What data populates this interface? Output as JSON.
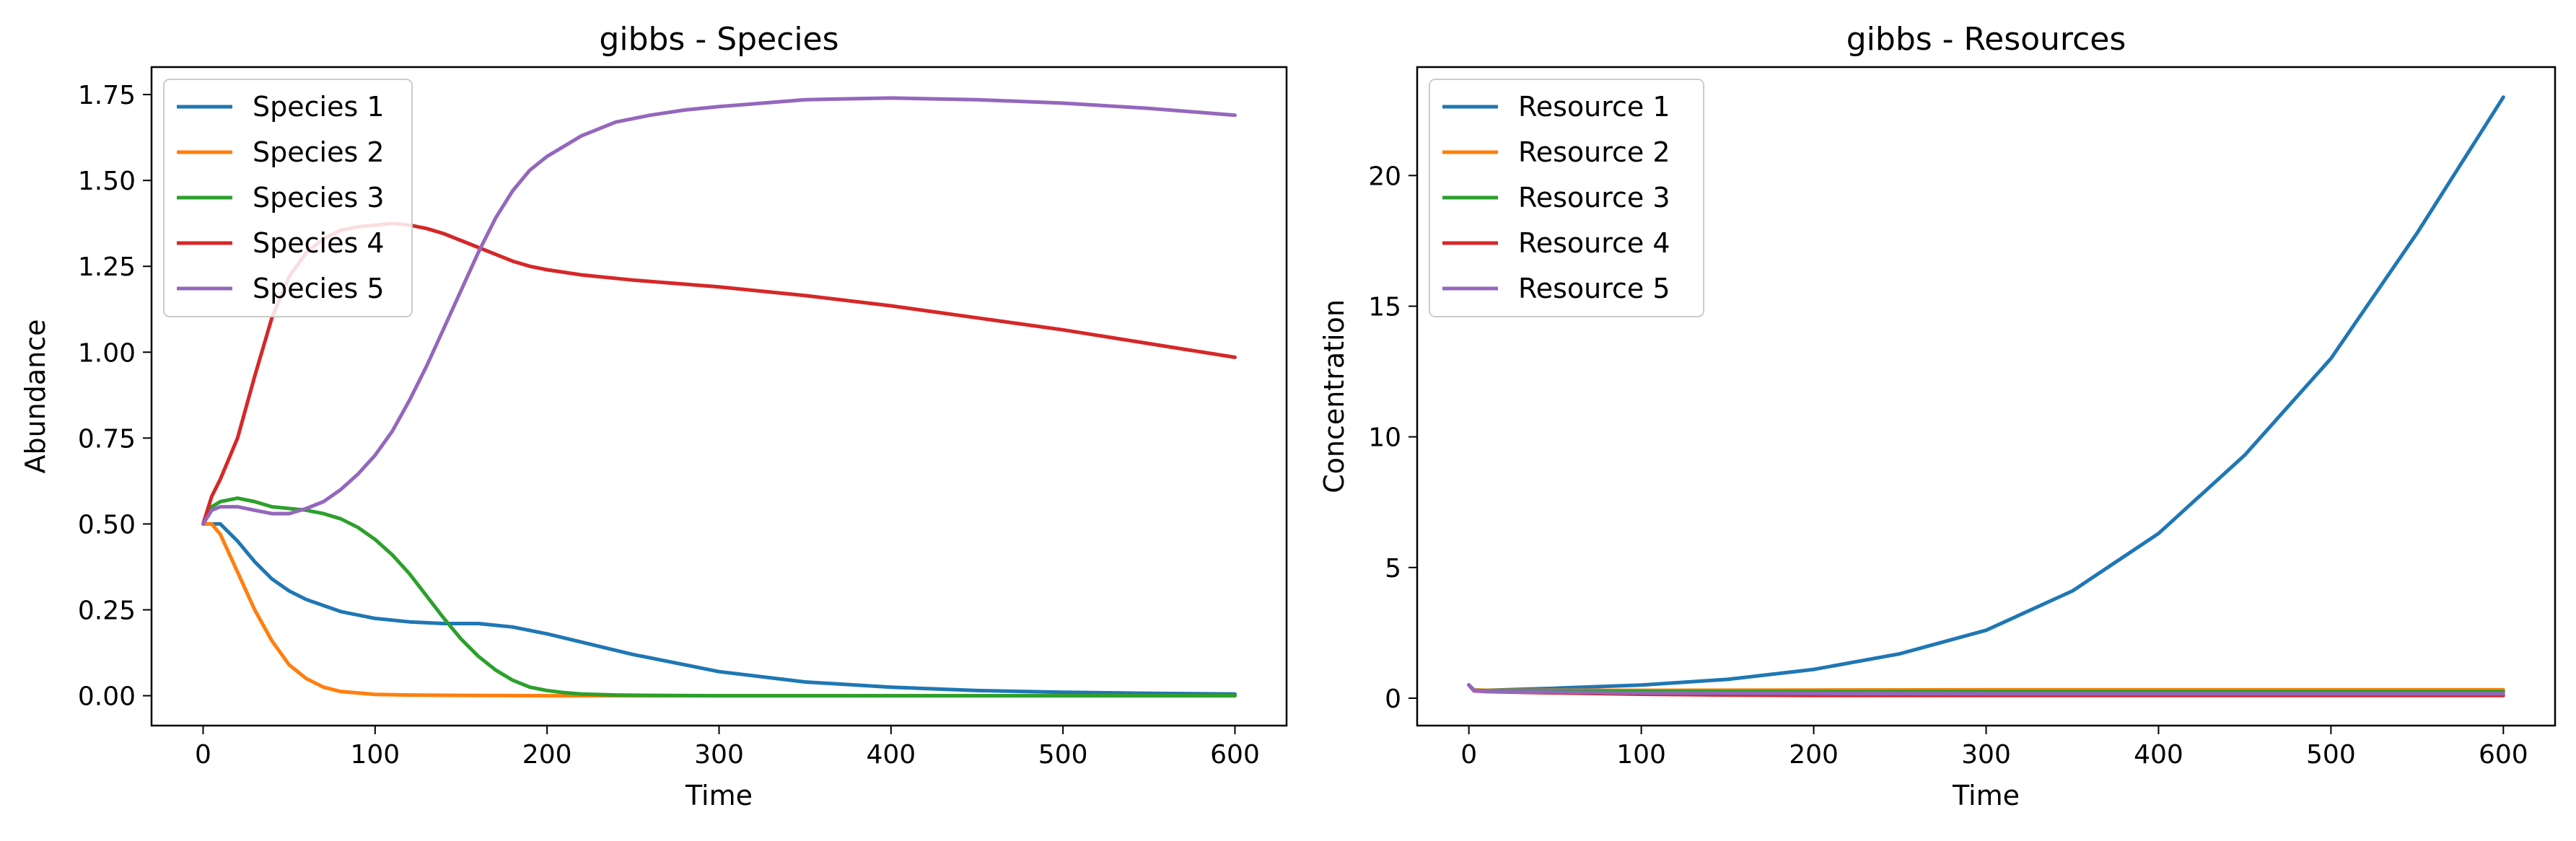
{
  "chart_data": [
    {
      "type": "line",
      "title": "gibbs - Species",
      "xlabel": "Time",
      "ylabel": "Abundance",
      "xlim": [
        -30,
        630
      ],
      "ylim": [
        -0.087,
        1.83
      ],
      "xticks": [
        0,
        100,
        200,
        300,
        400,
        500,
        600
      ],
      "yticks": [
        0.0,
        0.25,
        0.5,
        0.75,
        1.0,
        1.25,
        1.5,
        1.75
      ],
      "ytick_labels": [
        "0.00",
        "0.25",
        "0.50",
        "0.75",
        "1.00",
        "1.25",
        "1.50",
        "1.75"
      ],
      "legend_position": "top-left",
      "grid": false,
      "series": [
        {
          "name": "Species 1",
          "color": "#1f77b4",
          "x": [
            0,
            10,
            20,
            30,
            40,
            50,
            60,
            80,
            100,
            120,
            140,
            160,
            180,
            200,
            250,
            300,
            350,
            400,
            450,
            500,
            550,
            600
          ],
          "y": [
            0.5,
            0.5,
            0.45,
            0.39,
            0.34,
            0.305,
            0.28,
            0.245,
            0.225,
            0.215,
            0.21,
            0.21,
            0.2,
            0.18,
            0.12,
            0.07,
            0.04,
            0.025,
            0.015,
            0.01,
            0.007,
            0.005
          ]
        },
        {
          "name": "Species 2",
          "color": "#ff7f0e",
          "x": [
            0,
            5,
            10,
            20,
            30,
            40,
            50,
            60,
            70,
            80,
            100,
            120,
            150,
            200,
            300,
            400,
            500,
            600
          ],
          "y": [
            0.5,
            0.5,
            0.47,
            0.36,
            0.25,
            0.16,
            0.09,
            0.05,
            0.025,
            0.012,
            0.004,
            0.002,
            0.001,
            0.0,
            0.0,
            0.0,
            0.0,
            0.0
          ]
        },
        {
          "name": "Species 3",
          "color": "#2ca02c",
          "x": [
            0,
            5,
            10,
            20,
            30,
            40,
            50,
            60,
            70,
            80,
            90,
            100,
            110,
            120,
            130,
            140,
            150,
            160,
            170,
            180,
            190,
            200,
            210,
            220,
            240,
            260,
            300,
            400,
            500,
            600
          ],
          "y": [
            0.5,
            0.55,
            0.565,
            0.575,
            0.565,
            0.55,
            0.545,
            0.54,
            0.53,
            0.515,
            0.49,
            0.455,
            0.41,
            0.355,
            0.29,
            0.225,
            0.165,
            0.115,
            0.075,
            0.045,
            0.025,
            0.015,
            0.009,
            0.005,
            0.002,
            0.001,
            0.0,
            0.0,
            0.0,
            0.0
          ]
        },
        {
          "name": "Species 4",
          "color": "#d62728",
          "x": [
            0,
            5,
            10,
            20,
            30,
            40,
            50,
            60,
            70,
            80,
            90,
            100,
            110,
            120,
            130,
            140,
            150,
            160,
            170,
            180,
            190,
            200,
            220,
            250,
            300,
            350,
            400,
            450,
            500,
            550,
            600
          ],
          "y": [
            0.5,
            0.58,
            0.63,
            0.75,
            0.93,
            1.1,
            1.22,
            1.29,
            1.33,
            1.355,
            1.365,
            1.37,
            1.375,
            1.37,
            1.36,
            1.345,
            1.325,
            1.305,
            1.285,
            1.265,
            1.25,
            1.24,
            1.225,
            1.21,
            1.19,
            1.165,
            1.135,
            1.1,
            1.065,
            1.025,
            0.985
          ]
        },
        {
          "name": "Species 5",
          "color": "#9467bd",
          "x": [
            0,
            5,
            10,
            20,
            30,
            40,
            50,
            60,
            70,
            80,
            90,
            100,
            110,
            120,
            130,
            140,
            150,
            160,
            170,
            180,
            190,
            200,
            220,
            240,
            260,
            280,
            300,
            350,
            400,
            450,
            500,
            550,
            600
          ],
          "y": [
            0.5,
            0.54,
            0.55,
            0.55,
            0.54,
            0.53,
            0.53,
            0.545,
            0.565,
            0.6,
            0.645,
            0.7,
            0.77,
            0.86,
            0.96,
            1.07,
            1.18,
            1.29,
            1.39,
            1.47,
            1.53,
            1.57,
            1.63,
            1.67,
            1.69,
            1.705,
            1.715,
            1.735,
            1.74,
            1.735,
            1.725,
            1.71,
            1.69
          ]
        }
      ]
    },
    {
      "type": "line",
      "title": "gibbs - Resources",
      "xlabel": "Time",
      "ylabel": "Concentration",
      "xlim": [
        -30,
        630
      ],
      "ylim": [
        -1.05,
        24.15
      ],
      "xticks": [
        0,
        100,
        200,
        300,
        400,
        500,
        600
      ],
      "yticks": [
        0,
        5,
        10,
        15,
        20
      ],
      "ytick_labels": [
        "0",
        "5",
        "10",
        "15",
        "20"
      ],
      "legend_position": "top-left",
      "grid": false,
      "series": [
        {
          "name": "Resource 1",
          "color": "#1f77b4",
          "x": [
            0,
            3,
            10,
            50,
            100,
            150,
            200,
            250,
            300,
            350,
            400,
            450,
            500,
            550,
            600
          ],
          "y": [
            0.5,
            0.3,
            0.3,
            0.38,
            0.5,
            0.72,
            1.1,
            1.7,
            2.6,
            4.1,
            6.3,
            9.3,
            13.0,
            17.8,
            23.0
          ]
        },
        {
          "name": "Resource 2",
          "color": "#ff7f0e",
          "x": [
            0,
            3,
            10,
            100,
            200,
            300,
            400,
            500,
            600
          ],
          "y": [
            0.5,
            0.32,
            0.3,
            0.3,
            0.31,
            0.32,
            0.32,
            0.32,
            0.32
          ]
        },
        {
          "name": "Resource 3",
          "color": "#2ca02c",
          "x": [
            0,
            3,
            10,
            100,
            200,
            300,
            400,
            500,
            600
          ],
          "y": [
            0.5,
            0.3,
            0.28,
            0.26,
            0.25,
            0.25,
            0.25,
            0.25,
            0.25
          ]
        },
        {
          "name": "Resource 4",
          "color": "#d62728",
          "x": [
            0,
            3,
            10,
            50,
            100,
            150,
            200,
            300,
            400,
            500,
            600
          ],
          "y": [
            0.5,
            0.28,
            0.25,
            0.2,
            0.15,
            0.12,
            0.1,
            0.1,
            0.1,
            0.1,
            0.1
          ]
        },
        {
          "name": "Resource 5",
          "color": "#9467bd",
          "x": [
            0,
            3,
            10,
            100,
            200,
            300,
            400,
            500,
            600
          ],
          "y": [
            0.5,
            0.3,
            0.25,
            0.2,
            0.18,
            0.17,
            0.17,
            0.17,
            0.17
          ]
        }
      ]
    }
  ]
}
